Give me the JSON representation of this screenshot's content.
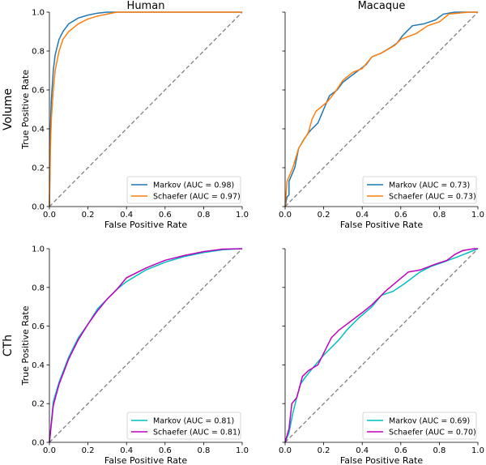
{
  "chart_data": [
    {
      "type": "line",
      "title": "Human",
      "row_label": "Volume",
      "xlabel": "False Positive Rate",
      "ylabel": "True Positive Rate",
      "xlim": [
        0,
        1
      ],
      "ylim": [
        0,
        1
      ],
      "grid": false,
      "legend": "bottom-right",
      "ticks": [
        "0.0",
        "0.2",
        "0.4",
        "0.6",
        "0.8",
        "1.0"
      ],
      "diagonal": true,
      "series": [
        {
          "name": "Markov (AUC = 0.98)",
          "color": "#1f77b4",
          "x": [
            0,
            0.005,
            0.01,
            0.02,
            0.03,
            0.05,
            0.07,
            0.1,
            0.15,
            0.2,
            0.25,
            0.3,
            1
          ],
          "y": [
            0,
            0.4,
            0.55,
            0.7,
            0.78,
            0.86,
            0.9,
            0.94,
            0.97,
            0.985,
            0.995,
            1,
            1
          ]
        },
        {
          "name": "Schaefer (AUC = 0.97)",
          "color": "#ff7f0e",
          "x": [
            0,
            0.005,
            0.01,
            0.02,
            0.03,
            0.05,
            0.07,
            0.1,
            0.15,
            0.2,
            0.25,
            0.3,
            0.35,
            1
          ],
          "y": [
            0,
            0.3,
            0.45,
            0.6,
            0.7,
            0.8,
            0.86,
            0.9,
            0.94,
            0.965,
            0.98,
            0.99,
            1,
            1
          ]
        }
      ]
    },
    {
      "type": "line",
      "title": "Macaque",
      "row_label": "",
      "xlabel": "False Positive Rate",
      "ylabel": "",
      "xlim": [
        0,
        1
      ],
      "ylim": [
        0,
        1
      ],
      "grid": false,
      "legend": "bottom-right",
      "ticks": [
        "0.0",
        "0.2",
        "0.4",
        "0.6",
        "0.8",
        "1.0"
      ],
      "diagonal": true,
      "series": [
        {
          "name": "Markov (AUC = 0.73)",
          "color": "#1f77b4",
          "x": [
            0,
            0.01,
            0.02,
            0.02,
            0.05,
            0.07,
            0.1,
            0.13,
            0.17,
            0.2,
            0.23,
            0.27,
            0.3,
            0.38,
            0.42,
            0.45,
            0.5,
            0.55,
            0.58,
            0.61,
            0.66,
            0.72,
            0.78,
            0.82,
            0.88,
            1
          ],
          "y": [
            0,
            0.05,
            0.06,
            0.13,
            0.2,
            0.3,
            0.35,
            0.39,
            0.43,
            0.5,
            0.57,
            0.6,
            0.64,
            0.7,
            0.73,
            0.77,
            0.79,
            0.82,
            0.84,
            0.88,
            0.93,
            0.94,
            0.96,
            0.99,
            1,
            1
          ]
        },
        {
          "name": "Schaefer (AUC = 0.73)",
          "color": "#ff7f0e",
          "x": [
            0,
            0.01,
            0.04,
            0.07,
            0.12,
            0.14,
            0.16,
            0.22,
            0.26,
            0.3,
            0.35,
            0.4,
            0.45,
            0.5,
            0.57,
            0.6,
            0.68,
            0.74,
            0.8,
            0.85,
            0.95,
            1
          ],
          "y": [
            0,
            0.13,
            0.2,
            0.3,
            0.38,
            0.45,
            0.49,
            0.54,
            0.59,
            0.65,
            0.69,
            0.71,
            0.77,
            0.79,
            0.83,
            0.86,
            0.89,
            0.93,
            0.95,
            0.99,
            1,
            1
          ]
        }
      ]
    },
    {
      "type": "line",
      "title": "",
      "row_label": "CTh",
      "xlabel": "False Positive Rate",
      "ylabel": "True Positive Rate",
      "xlim": [
        0,
        1
      ],
      "ylim": [
        0,
        1
      ],
      "grid": false,
      "legend": "bottom-right",
      "ticks": [
        "0.0",
        "0.2",
        "0.4",
        "0.6",
        "0.8",
        "1.0"
      ],
      "diagonal": true,
      "series": [
        {
          "name": "Markov (AUC = 0.81)",
          "color": "#00bfbf",
          "x": [
            0,
            0.02,
            0.05,
            0.1,
            0.15,
            0.2,
            0.25,
            0.3,
            0.35,
            0.4,
            0.5,
            0.6,
            0.7,
            0.8,
            0.9,
            1
          ],
          "y": [
            0,
            0.21,
            0.31,
            0.44,
            0.54,
            0.61,
            0.69,
            0.74,
            0.79,
            0.83,
            0.89,
            0.93,
            0.96,
            0.98,
            0.995,
            1
          ]
        },
        {
          "name": "Schaefer (AUC = 0.81)",
          "color": "#bf00bf",
          "x": [
            0,
            0.02,
            0.05,
            0.1,
            0.15,
            0.2,
            0.25,
            0.3,
            0.35,
            0.4,
            0.5,
            0.6,
            0.7,
            0.8,
            0.9,
            1
          ],
          "y": [
            0,
            0.19,
            0.3,
            0.43,
            0.53,
            0.61,
            0.68,
            0.74,
            0.79,
            0.85,
            0.9,
            0.94,
            0.965,
            0.985,
            0.998,
            1
          ]
        }
      ]
    },
    {
      "type": "line",
      "title": "",
      "row_label": "",
      "xlabel": "False Positive Rate",
      "ylabel": "",
      "xlim": [
        0,
        1
      ],
      "ylim": [
        0,
        1
      ],
      "grid": false,
      "legend": "bottom-right",
      "ticks": [
        "0.0",
        "0.2",
        "0.4",
        "0.6",
        "0.8",
        "1.0"
      ],
      "diagonal": true,
      "series": [
        {
          "name": "Markov (AUC = 0.69)",
          "color": "#00bfbf",
          "x": [
            0,
            0.02,
            0.04,
            0.06,
            0.08,
            0.1,
            0.14,
            0.2,
            0.24,
            0.28,
            0.32,
            0.38,
            0.45,
            0.5,
            0.56,
            0.62,
            0.7,
            0.76,
            0.82,
            0.9,
            1
          ],
          "y": [
            0,
            0.05,
            0.15,
            0.23,
            0.3,
            0.33,
            0.38,
            0.45,
            0.49,
            0.53,
            0.58,
            0.64,
            0.7,
            0.76,
            0.78,
            0.82,
            0.88,
            0.91,
            0.93,
            0.96,
            1
          ]
        },
        {
          "name": "Schaefer (AUC = 0.70)",
          "color": "#bf00bf",
          "x": [
            0,
            0.02,
            0.035,
            0.06,
            0.09,
            0.12,
            0.17,
            0.2,
            0.24,
            0.28,
            0.32,
            0.4,
            0.45,
            0.52,
            0.58,
            0.64,
            0.7,
            0.78,
            0.84,
            0.88,
            0.92,
            0.98,
            1
          ],
          "y": [
            0,
            0.07,
            0.2,
            0.23,
            0.34,
            0.37,
            0.4,
            0.46,
            0.54,
            0.58,
            0.61,
            0.67,
            0.71,
            0.78,
            0.83,
            0.88,
            0.89,
            0.92,
            0.94,
            0.97,
            0.99,
            1,
            1
          ]
        }
      ]
    }
  ]
}
